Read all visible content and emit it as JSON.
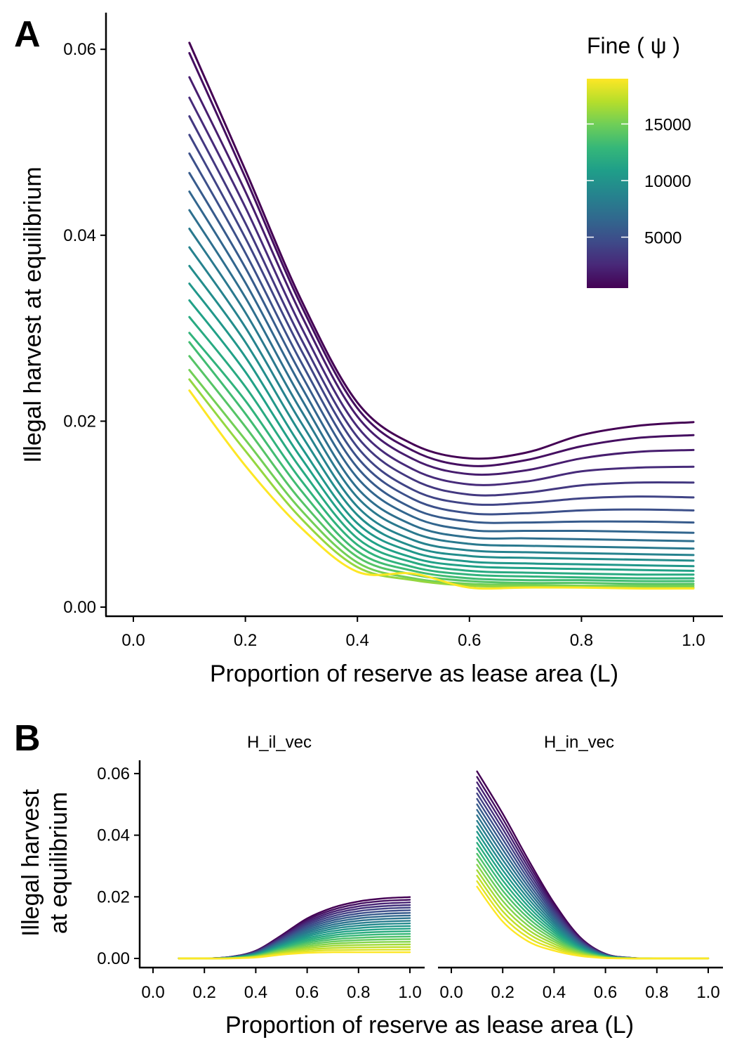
{
  "panel_a": {
    "letter": "A",
    "ylabel": "Illegal harvest at equilibrium",
    "xlabel": "Proportion of reserve as lease area (L)",
    "x_ticks": [
      "0.0",
      "0.2",
      "0.4",
      "0.6",
      "0.8",
      "1.0"
    ],
    "y_ticks": [
      "0.00",
      "0.02",
      "0.04",
      "0.06"
    ]
  },
  "legend": {
    "title": "Fine ( ψ )",
    "ticks": [
      "5000",
      "10000",
      "15000"
    ],
    "colors": [
      "#440154",
      "#482878",
      "#3e4a89",
      "#31688e",
      "#26828e",
      "#1f9e89",
      "#35b779",
      "#6ece58",
      "#b5de2b",
      "#fde725"
    ]
  },
  "panel_b": {
    "letter": "B",
    "ylabel_line1": "Illegal harvest",
    "ylabel_line2": "at equilibrium",
    "xlabel": "Proportion of reserve as lease area (L)",
    "facets": [
      "H_il_vec",
      "H_in_vec"
    ],
    "x_ticks": [
      "0.0",
      "0.2",
      "0.4",
      "0.6",
      "0.8",
      "1.0"
    ],
    "y_ticks": [
      "0.00",
      "0.02",
      "0.04",
      "0.06"
    ]
  },
  "chart_data": [
    {
      "type": "line",
      "panel": "A",
      "xlabel": "Proportion of reserve as lease area (L)",
      "ylabel": "Illegal harvest at equilibrium",
      "xlim": [
        -0.02,
        1.05
      ],
      "ylim": [
        -0.001,
        0.064
      ],
      "legend_position": "top-right",
      "color_scale": "viridis",
      "color_range": [
        500,
        19000
      ],
      "x": [
        0.1,
        0.2,
        0.3,
        0.4,
        0.5,
        0.6,
        0.7,
        0.8,
        0.9,
        1.0
      ],
      "series": [
        {
          "fine": 500,
          "values": [
            0.0607,
            0.047,
            0.033,
            0.022,
            0.0175,
            0.016,
            0.0166,
            0.0185,
            0.0195,
            0.0199
          ]
        },
        {
          "fine": 1250,
          "values": [
            0.0596,
            0.0462,
            0.0324,
            0.0214,
            0.0168,
            0.0152,
            0.0158,
            0.0173,
            0.0182,
            0.0185
          ]
        },
        {
          "fine": 2000,
          "values": [
            0.057,
            0.0447,
            0.0314,
            0.0205,
            0.0159,
            0.0143,
            0.0147,
            0.016,
            0.0167,
            0.0169
          ]
        },
        {
          "fine": 2750,
          "values": [
            0.0548,
            0.043,
            0.0301,
            0.0194,
            0.0148,
            0.0132,
            0.0135,
            0.0146,
            0.015,
            0.0151
          ]
        },
        {
          "fine": 3500,
          "values": [
            0.0528,
            0.0413,
            0.0288,
            0.0183,
            0.0137,
            0.0121,
            0.0123,
            0.0131,
            0.0134,
            0.0134
          ]
        },
        {
          "fine": 4250,
          "values": [
            0.0508,
            0.0397,
            0.0276,
            0.0172,
            0.0126,
            0.0111,
            0.0112,
            0.0117,
            0.0119,
            0.0118
          ]
        },
        {
          "fine": 5000,
          "values": [
            0.0488,
            0.0381,
            0.0263,
            0.0161,
            0.0116,
            0.0101,
            0.0101,
            0.0104,
            0.0105,
            0.0104
          ]
        },
        {
          "fine": 5750,
          "values": [
            0.0467,
            0.0365,
            0.025,
            0.015,
            0.0106,
            0.0092,
            0.0091,
            0.0092,
            0.0092,
            0.0091
          ]
        },
        {
          "fine": 6500,
          "values": [
            0.0447,
            0.0349,
            0.0237,
            0.0139,
            0.0097,
            0.0083,
            0.0082,
            0.0082,
            0.0081,
            0.008
          ]
        },
        {
          "fine": 7250,
          "values": [
            0.0427,
            0.0333,
            0.0224,
            0.0128,
            0.0088,
            0.0075,
            0.0074,
            0.0073,
            0.0072,
            0.0071
          ]
        },
        {
          "fine": 8000,
          "values": [
            0.0407,
            0.0317,
            0.0211,
            0.0118,
            0.008,
            0.0068,
            0.0066,
            0.0065,
            0.0064,
            0.0063
          ]
        },
        {
          "fine": 8750,
          "values": [
            0.0387,
            0.0301,
            0.0198,
            0.0108,
            0.0072,
            0.0061,
            0.0059,
            0.0058,
            0.0057,
            0.0056
          ]
        },
        {
          "fine": 9500,
          "values": [
            0.0367,
            0.0285,
            0.0185,
            0.0099,
            0.0065,
            0.0055,
            0.0053,
            0.0052,
            0.0051,
            0.005
          ]
        },
        {
          "fine": 10250,
          "values": [
            0.0348,
            0.0269,
            0.0172,
            0.009,
            0.0059,
            0.0049,
            0.0047,
            0.0046,
            0.0045,
            0.0044
          ]
        },
        {
          "fine": 11000,
          "values": [
            0.033,
            0.0253,
            0.016,
            0.0082,
            0.0053,
            0.0044,
            0.0042,
            0.0041,
            0.004,
            0.0039
          ]
        },
        {
          "fine": 11750,
          "values": [
            0.0312,
            0.0237,
            0.0148,
            0.0074,
            0.0048,
            0.0039,
            0.0037,
            0.0036,
            0.0035,
            0.0035
          ]
        },
        {
          "fine": 12500,
          "values": [
            0.0295,
            0.0222,
            0.0136,
            0.0067,
            0.0043,
            0.0035,
            0.0033,
            0.0032,
            0.0031,
            0.0031
          ]
        },
        {
          "fine": 13250,
          "values": [
            0.0285,
            0.0208,
            0.0125,
            0.006,
            0.0039,
            0.0031,
            0.0029,
            0.0029,
            0.0028,
            0.0028
          ]
        },
        {
          "fine": 14000,
          "values": [
            0.027,
            0.0194,
            0.0114,
            0.0054,
            0.0035,
            0.0028,
            0.0026,
            0.0026,
            0.0025,
            0.0025
          ]
        },
        {
          "fine": 15000,
          "values": [
            0.0255,
            0.018,
            0.0104,
            0.0048,
            0.0031,
            0.0025,
            0.0024,
            0.0023,
            0.0023,
            0.0023
          ]
        },
        {
          "fine": 16000,
          "values": [
            0.0245,
            0.0168,
            0.0095,
            0.0043,
            0.0029,
            0.0023,
            0.0022,
            0.0022,
            0.0021,
            0.0021
          ]
        },
        {
          "fine": 19000,
          "values": [
            0.0233,
            0.0152,
            0.0085,
            0.0038,
            0.0036,
            0.0021,
            0.0021,
            0.0021,
            0.002,
            0.002
          ]
        }
      ]
    },
    {
      "type": "line",
      "panel": "B",
      "facet": "H_il_vec",
      "ylim": [
        -0.001,
        0.064
      ],
      "xlim": [
        -0.02,
        1.05
      ],
      "x": [
        0.1,
        0.2,
        0.3,
        0.4,
        0.5,
        0.6,
        0.7,
        0.8,
        0.9,
        1.0
      ],
      "top_curve": [
        0.0,
        0.0,
        0.0005,
        0.0025,
        0.0075,
        0.013,
        0.0165,
        0.0185,
        0.0195,
        0.0199
      ],
      "bottom_curve": [
        0.0,
        0.0,
        0.0,
        0.0003,
        0.0012,
        0.0018,
        0.002,
        0.002,
        0.002,
        0.002
      ]
    },
    {
      "type": "line",
      "panel": "B",
      "facet": "H_in_vec",
      "ylim": [
        -0.001,
        0.064
      ],
      "xlim": [
        -0.02,
        1.05
      ],
      "x": [
        0.1,
        0.2,
        0.3,
        0.4,
        0.5,
        0.6,
        0.7,
        0.8,
        0.9,
        1.0
      ],
      "top_curve": [
        0.0607,
        0.047,
        0.032,
        0.018,
        0.007,
        0.0015,
        0.0002,
        0.0,
        0.0,
        0.0
      ],
      "bottom_curve": [
        0.0233,
        0.012,
        0.0055,
        0.0025,
        0.0008,
        0.0001,
        0.0,
        0.0,
        0.0,
        0.0
      ]
    }
  ]
}
